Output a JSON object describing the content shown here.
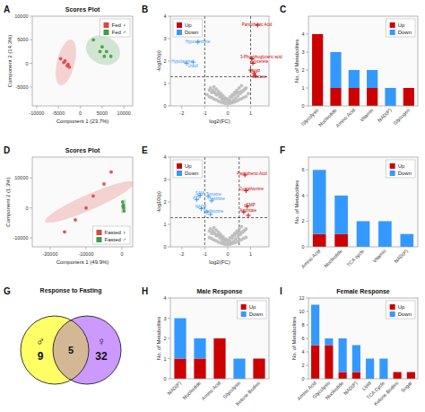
{
  "chart_data": [
    {
      "type": "scatter",
      "panel": "A",
      "title": "Scores Plot",
      "xlabel": "Component 1 (23.7%)",
      "ylabel": "Component 2 (14.3%)",
      "xlim": [
        -11000,
        12000
      ],
      "ylim": [
        -9000,
        10000
      ],
      "xticks": [
        -10000,
        -5000,
        0,
        5000,
        10000
      ],
      "yticks": [
        -5000,
        0,
        5000,
        10000
      ],
      "legend": "upper right",
      "series": [
        {
          "name": "Fed ♀",
          "color": "#DD4444",
          "marker": "circle",
          "x": [
            -4500,
            -3500,
            -3000,
            -2500,
            -3800,
            -2800
          ],
          "y": [
            1000,
            500,
            -500,
            -800,
            200,
            -200
          ],
          "ellipse": {
            "x": -3300,
            "y": 200,
            "width": 4000,
            "height": 10000,
            "angle": -15
          }
        },
        {
          "name": "Fed ♂",
          "color": "#449944",
          "marker": "circle",
          "x": [
            3000,
            5000,
            6000,
            5500,
            4500,
            7000
          ],
          "y": [
            5000,
            3500,
            2500,
            1500,
            2500,
            1500
          ],
          "ellipse": {
            "x": 5200,
            "y": 2800,
            "width": 8000,
            "height": 6000,
            "angle": -20
          }
        }
      ]
    },
    {
      "type": "scatter",
      "panel": "B",
      "xlabel": "log2(FC)",
      "ylabel": "-log10(p)",
      "xlim": [
        -2.5,
        1.8
      ],
      "ylim": [
        0,
        4
      ],
      "xticks": [
        -2,
        -1,
        0,
        1
      ],
      "yticks": [
        0,
        1,
        2,
        3,
        4
      ],
      "legend": "upper left",
      "vlines": [
        -1,
        1
      ],
      "hlines": [
        1.3
      ],
      "series": [
        {
          "color": "#BBBBBB",
          "marker": "circle",
          "x": [
            0.0,
            0.1,
            -0.1,
            0.2,
            -0.2,
            0.3,
            -0.3,
            0.4,
            -0.4,
            0.5,
            -0.5,
            0.6,
            -0.6,
            0.0,
            0.1,
            -0.1,
            0.2,
            -0.2,
            0.5,
            -0.5,
            0.7,
            -0.7,
            0.8,
            -0.8,
            0.3,
            -0.3,
            0.4,
            -0.4,
            0.6,
            -0.6,
            0.15,
            -0.15,
            0.25,
            -0.25,
            0.35,
            -0.35,
            0.45,
            -0.45,
            0.55,
            -0.55,
            0.65,
            -0.65,
            0.75,
            -0.75,
            0.0,
            0.1,
            -0.1,
            0.2,
            -0.2,
            0.3,
            -0.3,
            0.4,
            -0.4,
            0.5,
            -0.5,
            0.6,
            -0.6,
            0.7,
            -0.7,
            0.8,
            -0.8,
            -0.9,
            0.9
          ],
          "y": [
            0.3,
            0.4,
            0.35,
            0.5,
            0.45,
            0.6,
            0.55,
            0.7,
            0.65,
            0.8,
            0.75,
            0.9,
            0.85,
            0.2,
            0.25,
            0.3,
            0.4,
            0.35,
            0.6,
            0.5,
            0.7,
            0.6,
            0.8,
            0.7,
            0.5,
            0.45,
            0.6,
            0.55,
            0.65,
            0.6,
            0.15,
            0.2,
            0.25,
            0.3,
            0.35,
            0.4,
            0.45,
            0.5,
            0.55,
            0.6,
            0.65,
            0.7,
            0.75,
            0.8,
            0.1,
            0.12,
            0.11,
            0.15,
            0.14,
            0.18,
            0.17,
            0.22,
            0.21,
            0.28,
            0.27,
            0.32,
            0.31,
            0.38,
            0.37,
            0.42,
            0.41,
            0.5,
            0.55
          ]
        },
        {
          "name": "Up",
          "color": "#CC0000",
          "marker": "plus",
          "x": [
            1.3,
            1.05,
            1.1,
            1.0,
            1.15,
            1.2
          ],
          "y": [
            3.6,
            2.1,
            1.9,
            1.6,
            1.45,
            1.35
          ]
        },
        {
          "name": "Down",
          "color": "#3399FF",
          "marker": "plus",
          "x": [
            -1.3,
            -1.8,
            -1.5
          ],
          "y": [
            2.85,
            1.9,
            1.95
          ]
        }
      ],
      "annotations": [
        {
          "text": "Pantothenic Acid",
          "x": 0.62,
          "y": 3.58,
          "color": "#CC0000"
        },
        {
          "text": "Hypoxanthine",
          "x": -1.85,
          "y": 2.82,
          "color": "#3399FF"
        },
        {
          "text": "3-Phosphoglyceric acid",
          "x": 0.55,
          "y": 2.12,
          "color": "#CC0000"
        },
        {
          "text": "Glycerete",
          "x": 1.02,
          "y": 1.92,
          "color": "#CC0000"
        },
        {
          "text": "Hypotaurine",
          "x": -2.45,
          "y": 1.92,
          "color": "#3399FF"
        },
        {
          "text": "Uracil",
          "x": -1.75,
          "y": 1.98,
          "color": "#3399FF"
        },
        {
          "text": "cAMP",
          "x": 0.95,
          "y": 1.47,
          "color": "#CC0000"
        },
        {
          "text": "Glucose",
          "x": 1.05,
          "y": 1.35,
          "color": "#CC0000"
        }
      ]
    },
    {
      "type": "bar",
      "panel": "C",
      "stacked": true,
      "ylabel": "No. of Metabolites",
      "categories": [
        "Glycolysis",
        "Nucleotide",
        "Amino Acid",
        "Vitamin",
        "NAD(P)",
        "Glycogen"
      ],
      "series": [
        {
          "name": "Up",
          "color": "#CC0000",
          "values": [
            4,
            1,
            1,
            1,
            0,
            1
          ]
        },
        {
          "name": "Down",
          "color": "#3399FF",
          "values": [
            0,
            2,
            1,
            1,
            1,
            0
          ]
        }
      ],
      "ylim": [
        0,
        5
      ],
      "yticks": [
        0,
        1,
        2,
        3,
        4
      ],
      "legend": "upper right"
    },
    {
      "type": "scatter",
      "panel": "D",
      "title": "Scores Plot",
      "xlabel": "Component 1 (49.9%)",
      "ylabel": "Component 2 (1.3%)",
      "xlim": [
        -25000,
        3000
      ],
      "ylim": [
        -13000,
        17000
      ],
      "xticks": [
        -20000,
        -10000,
        0
      ],
      "yticks": [
        -10000,
        0,
        10000
      ],
      "legend": "lower right",
      "series": [
        {
          "name": "Fasted ♀",
          "color": "#DD4444",
          "marker": "circle",
          "x": [
            -5000,
            -8000,
            -10000,
            -13000,
            -16000,
            -3000
          ],
          "y": [
            8000,
            4000,
            0,
            -4000,
            -8000,
            12000
          ],
          "ellipse": {
            "x": -9000,
            "y": 2000,
            "width": 5000,
            "height": 28000,
            "angle": -62
          }
        },
        {
          "name": "Fasted ♂",
          "color": "#449944",
          "marker": "circle",
          "x": [
            200,
            400,
            500,
            600,
            300
          ],
          "y": [
            2000,
            1000,
            0,
            -1000,
            500
          ],
          "ellipse": {
            "x": 450,
            "y": 500,
            "width": 1200,
            "height": 5000,
            "angle": -10
          }
        }
      ]
    },
    {
      "type": "scatter",
      "panel": "E",
      "xlabel": "log2(FC)",
      "ylabel": "-log10(p)",
      "xlim": [
        -2.5,
        1.8
      ],
      "ylim": [
        0,
        4
      ],
      "xticks": [
        -2,
        -1,
        0,
        1
      ],
      "yticks": [
        0,
        1,
        2,
        3,
        4
      ],
      "legend": "upper left",
      "vlines": [
        -1,
        0.5
      ],
      "hlines": [
        1.3
      ],
      "series": [
        {
          "color": "#BBBBBB",
          "marker": "circle",
          "x": [
            0.0,
            0.1,
            -0.1,
            0.2,
            -0.2,
            0.3,
            -0.3,
            0.4,
            -0.4,
            0.5,
            -0.5,
            0.6,
            -0.6,
            0.0,
            0.1,
            -0.1,
            0.2,
            -0.2,
            0.5,
            -0.5,
            0.7,
            -0.7,
            0.8,
            -0.8,
            0.3,
            -0.3,
            0.4,
            -0.4,
            0.6,
            -0.6,
            0.15,
            -0.15,
            0.25,
            -0.25,
            0.35,
            -0.35,
            0.45,
            -0.45,
            0.55,
            -0.55,
            0.65,
            -0.65,
            0.75,
            -0.75,
            0.0,
            0.1,
            -0.1,
            0.2,
            -0.2,
            0.3,
            -0.3,
            0.4,
            -0.4,
            0.5,
            -0.5,
            0.6,
            -0.6,
            0.7,
            -0.7,
            0.8,
            -0.8
          ],
          "y": [
            0.3,
            0.4,
            0.35,
            0.5,
            0.45,
            0.6,
            0.55,
            0.7,
            0.65,
            0.8,
            0.75,
            0.9,
            0.85,
            0.2,
            0.25,
            0.3,
            0.4,
            0.35,
            0.6,
            0.5,
            0.7,
            0.6,
            0.8,
            0.7,
            0.5,
            0.45,
            0.6,
            0.55,
            0.65,
            0.6,
            0.15,
            0.2,
            0.25,
            0.3,
            0.35,
            0.4,
            0.45,
            0.5,
            0.55,
            0.6,
            0.65,
            0.7,
            0.75,
            0.8,
            0.1,
            0.12,
            0.11,
            0.15,
            0.14,
            0.18,
            0.17,
            0.22,
            0.21,
            0.28,
            0.27,
            0.32,
            0.31,
            0.38,
            0.37,
            0.42,
            0.41
          ]
        },
        {
          "name": "Up",
          "color": "#CC0000",
          "marker": "plus",
          "x": [
            0.75,
            0.8,
            0.85,
            0.7,
            0.9
          ],
          "y": [
            3.2,
            2.5,
            1.8,
            1.55,
            1.4
          ]
        },
        {
          "name": "Down",
          "color": "#3399FF",
          "marker": "plus",
          "x": [
            -1.2,
            -0.85,
            -1.35,
            -0.7,
            -1.15,
            -0.9,
            -0.75
          ],
          "y": [
            2.3,
            2.25,
            2.1,
            2.05,
            1.7,
            1.55,
            1.45
          ]
        }
      ],
      "annotations": [
        {
          "text": "Pantothenic Acid",
          "x": 0.4,
          "y": 3.22,
          "color": "#CC0000"
        },
        {
          "text": "Cystathionine",
          "x": 0.5,
          "y": 2.52,
          "color": "#CC0000"
        },
        {
          "text": "cGMP",
          "x": 0.72,
          "y": 1.82,
          "color": "#CC0000"
        },
        {
          "text": "Aconitate",
          "x": 0.52,
          "y": 1.57,
          "color": "#CC0000"
        },
        {
          "text": "Tyrosine",
          "x": -0.95,
          "y": 2.27,
          "color": "#3399FF"
        },
        {
          "text": "SAM",
          "x": -1.42,
          "y": 2.32,
          "color": "#3399FF"
        },
        {
          "text": "ATP",
          "x": -1.52,
          "y": 2.12,
          "color": "#3399FF"
        },
        {
          "text": "Xanthine",
          "x": -0.82,
          "y": 2.07,
          "color": "#3399FF"
        },
        {
          "text": "NADP",
          "x": -1.42,
          "y": 1.72,
          "color": "#3399FF"
        },
        {
          "text": "Methionine",
          "x": -1.05,
          "y": 1.57,
          "color": "#3399FF"
        }
      ]
    },
    {
      "type": "bar",
      "panel": "F",
      "stacked": true,
      "ylabel": "No. of Metabolites",
      "categories": [
        "Amino Acid",
        "Nucleotide",
        "TCA cycle",
        "Vitamin",
        "NAD(P)"
      ],
      "series": [
        {
          "name": "Up",
          "color": "#CC0000",
          "values": [
            1,
            1,
            0,
            0,
            0
          ]
        },
        {
          "name": "Down",
          "color": "#3399FF",
          "values": [
            5,
            3,
            2,
            2,
            1
          ]
        }
      ],
      "ylim": [
        0,
        7
      ],
      "yticks": [
        0,
        2,
        4,
        6
      ],
      "legend": "upper right"
    },
    {
      "type": "venn",
      "panel": "G",
      "title": "Response to Fasting",
      "sets": [
        {
          "name": "♂",
          "value": 9,
          "color": "#FFFF66"
        },
        {
          "name": "♀",
          "value": 32,
          "color": "#CC99FF"
        }
      ],
      "overlap": {
        "value": 5,
        "color": "#D4B896"
      }
    },
    {
      "type": "bar",
      "panel": "H",
      "stacked": true,
      "title": "Male Response",
      "ylabel": "No. of Metabolites",
      "categories": [
        "NAD(P)",
        "Nucleotide",
        "Amino Acid",
        "Glycolysis",
        "Ketone Bodies"
      ],
      "series": [
        {
          "name": "Up",
          "color": "#CC0000",
          "values": [
            1,
            1,
            2,
            0,
            1
          ]
        },
        {
          "name": "Down",
          "color": "#3399FF",
          "values": [
            2,
            1,
            0,
            1,
            0
          ]
        }
      ],
      "ylim": [
        0,
        4
      ],
      "yticks": [
        0,
        1,
        2,
        3,
        4
      ],
      "legend": "upper right"
    },
    {
      "type": "bar",
      "panel": "I",
      "stacked": true,
      "title": "Female Response",
      "ylabel": "No. of Metabolites",
      "categories": [
        "Amino Acid",
        "Glycolysis",
        "Nucleotide",
        "NAD(P)",
        "Lipid",
        "TCA Cycle",
        "Ketone Bodies",
        "Sugar"
      ],
      "series": [
        {
          "name": "Up",
          "color": "#CC0000",
          "values": [
            5,
            5,
            1,
            1,
            0,
            0,
            1,
            1
          ]
        },
        {
          "name": "Down",
          "color": "#3399FF",
          "values": [
            6,
            1,
            5,
            4,
            3,
            3,
            0,
            0
          ]
        }
      ],
      "ylim": [
        0,
        12
      ],
      "yticks": [
        0,
        2,
        4,
        6,
        8,
        10,
        12
      ],
      "legend": "upper right"
    }
  ]
}
